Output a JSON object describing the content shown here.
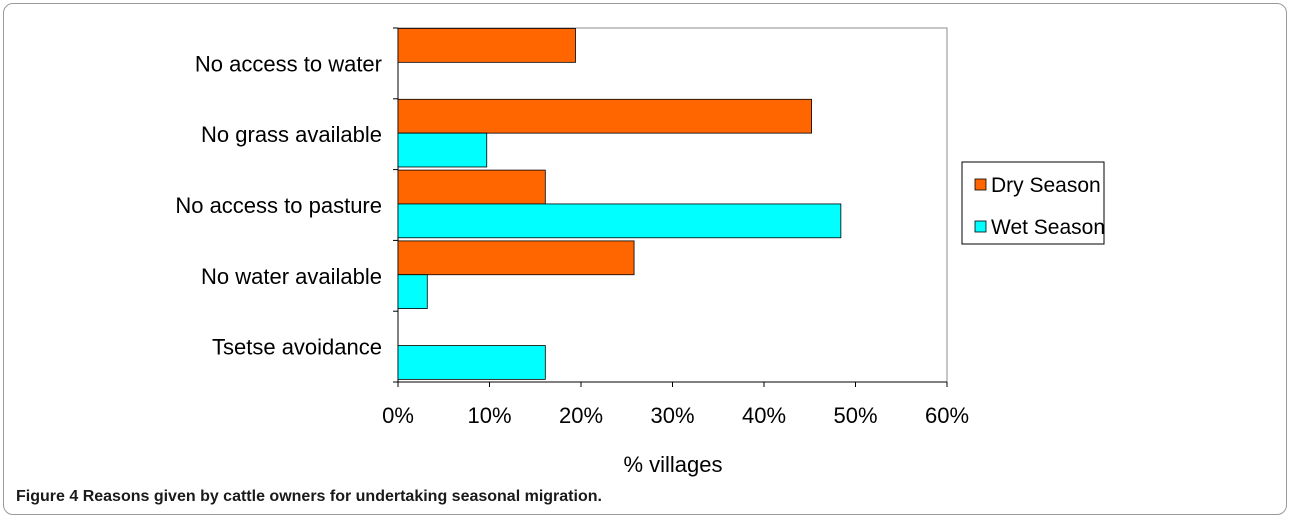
{
  "chart_data": {
    "type": "bar",
    "orientation": "horizontal",
    "categories": [
      "No access to water",
      "No grass available",
      "No access to pasture",
      "No water available",
      "Tsetse avoidance"
    ],
    "series": [
      {
        "name": "Dry Season",
        "values": [
          19.4,
          45.2,
          16.1,
          25.8,
          0
        ],
        "color": "#ff6600"
      },
      {
        "name": "Wet Season",
        "values": [
          0,
          9.7,
          48.4,
          3.2,
          16.1
        ],
        "color": "#00ffff"
      }
    ],
    "xlabel": "% villages",
    "xlim": [
      0,
      60
    ],
    "xticks": [
      0,
      10,
      20,
      30,
      40,
      50,
      60
    ],
    "tick_labels": [
      "0%",
      "10%",
      "20%",
      "30%",
      "40%",
      "50%",
      "60%"
    ],
    "grid": false,
    "legend_position": "right"
  },
  "caption": {
    "label": "Figure 4",
    "text": "Reasons given by cattle owners for undertaking seasonal migration."
  }
}
